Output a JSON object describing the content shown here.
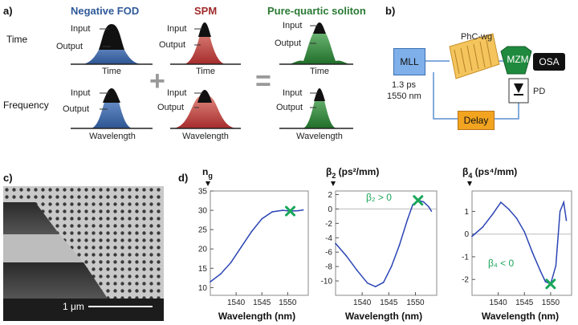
{
  "panel_a": {
    "label": "a)",
    "columns": [
      {
        "title": "Negative FOD",
        "color": "#2f5a98"
      },
      {
        "title": "SPM",
        "color": "#a02a2a"
      },
      {
        "title": "Pure-quartic soliton",
        "color": "#2a7a34"
      }
    ],
    "row_time": "Time",
    "row_frequency": "Frequency",
    "input_label": "Input",
    "output_label": "Output",
    "axis_time": "Time",
    "axis_wavelength": "Wavelength",
    "plus": "+",
    "equals": "="
  },
  "panel_b": {
    "label": "b)",
    "mll": "MLL",
    "mll_spec_1": "1.3 ps",
    "mll_spec_2": "1550 nm",
    "phc": "PhC-wg",
    "mzm": "MZM",
    "osa": "OSA",
    "delay": "Delay",
    "pd": "PD"
  },
  "panel_c": {
    "label": "c)",
    "scale": "1 μm"
  },
  "panel_d": {
    "label": "d)",
    "xlabel": "Wavelength (nm)",
    "ng_label": "n",
    "ng_sub": "g",
    "b2_label": "β",
    "b2_sub": "2",
    "b2_unit": " (ps²/mm)",
    "b4_label": "β",
    "b4_sub": "4",
    "b4_unit": " (ps⁴/mm)",
    "b2_ann": "β₂ > 0",
    "b4_ann": "β₄ < 0"
  },
  "chart_data": [
    {
      "type": "line",
      "name": "ng",
      "x": [
        1535,
        1537,
        1539,
        1541,
        1543,
        1545,
        1547,
        1549,
        1550.5,
        1552,
        1553
      ],
      "values": [
        11.5,
        13.5,
        16.5,
        20.5,
        24.5,
        27.8,
        29.6,
        30.0,
        29.8,
        29.9,
        30.1
      ],
      "marker": {
        "x": 1550.5,
        "y": 29.8
      },
      "xticks": [
        1540,
        1545,
        1550
      ],
      "yticks": [
        10,
        15,
        20,
        25,
        30,
        35
      ],
      "xlim": [
        1535,
        1554
      ],
      "ylim": [
        8,
        35
      ],
      "xlabel": "Wavelength (nm)"
    },
    {
      "type": "line",
      "name": "beta2",
      "x": [
        1535,
        1537,
        1539,
        1541,
        1542.5,
        1544,
        1545.5,
        1547,
        1548.5,
        1549.5,
        1550.5,
        1551.5,
        1552.5,
        1553
      ],
      "values": [
        -4.8,
        -6.5,
        -8.5,
        -10.3,
        -10.8,
        -10.2,
        -8.0,
        -5.0,
        -1.5,
        0.6,
        1.2,
        1.0,
        0.3,
        -0.3
      ],
      "marker": {
        "x": 1550.5,
        "y": 1.2
      },
      "xticks": [
        1540,
        1545,
        1550
      ],
      "yticks": [
        -10,
        -8,
        -6,
        -4,
        -2,
        0,
        2
      ],
      "xlim": [
        1535,
        1554
      ],
      "ylim": [
        -12,
        2.5
      ],
      "xlabel": "Wavelength (nm)"
    },
    {
      "type": "line",
      "name": "beta4",
      "x": [
        1535,
        1537,
        1539,
        1540.5,
        1542,
        1543.5,
        1545,
        1546.5,
        1548,
        1549,
        1550,
        1551,
        1551.8,
        1552.5,
        1553
      ],
      "values": [
        -0.1,
        0.3,
        0.9,
        1.4,
        1.1,
        0.7,
        0.1,
        -0.8,
        -1.6,
        -2.1,
        -2.2,
        -1.4,
        1.0,
        1.4,
        0.6
      ],
      "marker": {
        "x": 1550,
        "y": -2.2
      },
      "xticks": [
        1540,
        1545,
        1550
      ],
      "yticks": [
        -2,
        -1,
        0,
        1
      ],
      "xlim": [
        1535,
        1554
      ],
      "ylim": [
        -2.7,
        1.9
      ],
      "xlabel": "Wavelength (nm)"
    }
  ]
}
